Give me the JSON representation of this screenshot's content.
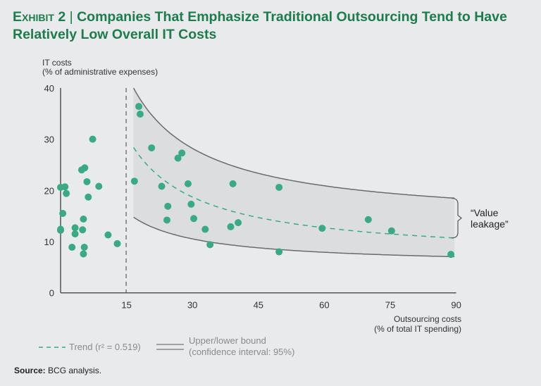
{
  "title": {
    "exhibit": "Exhibit 2",
    "separator": "|",
    "text": "Companies That Emphasize Traditional Outsourcing Tend to Have Relatively Low Overall IT Costs"
  },
  "source": {
    "label": "Source:",
    "text": "BCG analysis."
  },
  "colors": {
    "title": "#1d7c4c",
    "point": "#3aaa85",
    "bound": "#6b6b6b",
    "band": "#dcdddf",
    "background": "#e9eaeb"
  },
  "chart_data": {
    "type": "scatter",
    "ylabel": [
      "IT costs",
      "(% of administrative expenses)"
    ],
    "xlabel": [
      "Outsourcing costs",
      "(% of total IT spending)"
    ],
    "xlim": [
      0,
      90
    ],
    "ylim": [
      0,
      40
    ],
    "xticks": [
      "15",
      "30",
      "45",
      "60",
      "75",
      "90"
    ],
    "xtick_values": [
      15,
      30,
      45,
      60,
      75,
      90
    ],
    "yticks": [
      "0",
      "10",
      "20",
      "30",
      "40"
    ],
    "ytick_values": [
      0,
      10,
      20,
      30,
      40
    ],
    "threshold_x": 15,
    "points": [
      [
        0,
        20.6
      ],
      [
        1.0,
        20.7
      ],
      [
        1.3,
        19.4
      ],
      [
        0.5,
        15.5
      ],
      [
        0,
        12.4
      ],
      [
        0,
        12.2
      ],
      [
        3.3,
        12.7
      ],
      [
        3.3,
        11.5
      ],
      [
        2.6,
        8.9
      ],
      [
        7.3,
        30.0
      ],
      [
        4.8,
        24.0
      ],
      [
        5.5,
        24.4
      ],
      [
        6.0,
        21.7
      ],
      [
        6.3,
        18.7
      ],
      [
        8.7,
        20.8
      ],
      [
        5.2,
        14.4
      ],
      [
        5.0,
        12.3
      ],
      [
        5.4,
        8.9
      ],
      [
        5.2,
        7.6
      ],
      [
        10.8,
        11.3
      ],
      [
        12.9,
        9.6
      ],
      [
        17.8,
        36.4
      ],
      [
        18.1,
        34.9
      ],
      [
        16.8,
        21.8
      ],
      [
        20.7,
        28.3
      ],
      [
        27.6,
        27.3
      ],
      [
        26.7,
        26.3
      ],
      [
        23.0,
        20.8
      ],
      [
        29.0,
        21.3
      ],
      [
        24.4,
        16.9
      ],
      [
        24.2,
        14.2
      ],
      [
        29.7,
        17.3
      ],
      [
        30.3,
        14.5
      ],
      [
        32.9,
        12.4
      ],
      [
        34.0,
        9.4
      ],
      [
        39.2,
        21.3
      ],
      [
        38.7,
        12.9
      ],
      [
        40.4,
        13.7
      ],
      [
        49.7,
        20.6
      ],
      [
        49.7,
        8.0
      ],
      [
        59.5,
        12.6
      ],
      [
        70.0,
        14.3
      ],
      [
        75.3,
        12.1
      ],
      [
        88.8,
        7.5
      ]
    ],
    "curves": {
      "x_range": [
        16.6,
        90
      ],
      "upper": {
        "a": 13.6,
        "b": 438
      },
      "trend": {
        "a": 6.7,
        "b": 360
      },
      "lower": {
        "a": 5.3,
        "b": 157
      }
    },
    "annotation": [
      "“Value",
      "leakage”"
    ],
    "legend": {
      "trend": "Trend (r² = 0.519)",
      "bounds": [
        "Upper/lower bound",
        "(confidence interval: 95%)"
      ],
      "placement": "bottom-left"
    }
  }
}
